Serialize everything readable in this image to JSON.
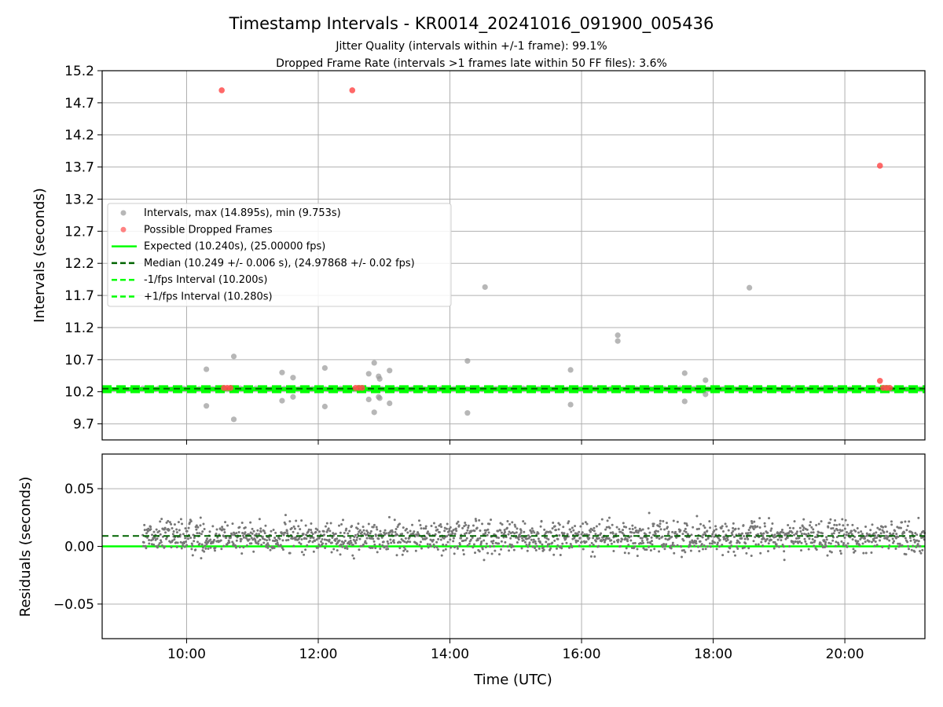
{
  "figure": {
    "title": "Timestamp Intervals - KR0014_20241016_091900_005436",
    "subtitle1": "Jitter Quality (intervals within +/-1 frame): 99.1%",
    "subtitle2": "Dropped Frame Rate (intervals >1 frames late within 50 FF files): 3.6%"
  },
  "colors": {
    "intervals": "#999999",
    "dropped": "#ff4d4d",
    "expected": "#00ff00",
    "median": "#006400",
    "fps_bounds": "#00ff00",
    "residuals": "#777777",
    "grid": "#b0b0b0"
  },
  "chart_data": [
    {
      "type": "scatter",
      "ylabel": "Intervals (seconds)",
      "xlim": [
        "08:43",
        "21:13"
      ],
      "ylim": [
        9.45,
        15.2
      ],
      "yticks": [
        "9.7",
        "10.2",
        "10.7",
        "11.2",
        "11.7",
        "12.2",
        "12.7",
        "13.2",
        "13.7",
        "14.2",
        "14.7",
        "15.2"
      ],
      "xticks": [
        "10:00",
        "12:00",
        "14:00",
        "16:00",
        "18:00",
        "20:00"
      ],
      "grid": true,
      "legend_position": "center-left",
      "legend": [
        {
          "label": "Intervals, max (14.895s), min (9.753s)",
          "kind": "marker",
          "color": "#999999"
        },
        {
          "label": "Possible Dropped Frames",
          "kind": "marker",
          "color": "#ff4d4d"
        },
        {
          "label": "Expected (10.240s), (25.00000 fps)",
          "kind": "line",
          "color": "#00ff00",
          "dash": "solid"
        },
        {
          "label": "Median (10.249 +/- 0.006 s), (24.97868 +/- 0.02 fps)",
          "kind": "line",
          "color": "#006400",
          "dash": "dashed"
        },
        {
          "label": "-1/fps Interval (10.200s)",
          "kind": "line",
          "color": "#00ff00",
          "dash": "dashed"
        },
        {
          "label": "+1/fps Interval (10.280s)",
          "kind": "line",
          "color": "#00ff00",
          "dash": "dashed"
        }
      ],
      "reference_lines": {
        "expected": 10.24,
        "median": 10.249,
        "minus_one_fps": 10.2,
        "plus_one_fps": 10.28
      },
      "band": {
        "x_start": "09:20",
        "x_end": "21:13",
        "y": 10.249
      },
      "interval_outliers": [
        {
          "x": "10:18",
          "y": 10.55
        },
        {
          "x": "10:18",
          "y": 9.98
        },
        {
          "x": "10:43",
          "y": 10.75
        },
        {
          "x": "10:43",
          "y": 9.77
        },
        {
          "x": "11:27",
          "y": 10.5
        },
        {
          "x": "11:27",
          "y": 10.06
        },
        {
          "x": "11:37",
          "y": 10.42
        },
        {
          "x": "11:37",
          "y": 10.12
        },
        {
          "x": "12:06",
          "y": 10.57
        },
        {
          "x": "12:06",
          "y": 9.97
        },
        {
          "x": "12:46",
          "y": 10.48
        },
        {
          "x": "12:46",
          "y": 10.08
        },
        {
          "x": "12:51",
          "y": 10.65
        },
        {
          "x": "12:51",
          "y": 9.88
        },
        {
          "x": "12:55",
          "y": 10.44
        },
        {
          "x": "12:55",
          "y": 10.12
        },
        {
          "x": "12:56",
          "y": 10.4
        },
        {
          "x": "12:56",
          "y": 10.1
        },
        {
          "x": "13:05",
          "y": 10.53
        },
        {
          "x": "13:05",
          "y": 10.02
        },
        {
          "x": "14:16",
          "y": 10.68
        },
        {
          "x": "14:16",
          "y": 9.87
        },
        {
          "x": "14:32",
          "y": 11.83
        },
        {
          "x": "15:50",
          "y": 10.54
        },
        {
          "x": "15:50",
          "y": 10.0
        },
        {
          "x": "16:33",
          "y": 11.08
        },
        {
          "x": "16:33",
          "y": 10.99
        },
        {
          "x": "17:34",
          "y": 10.49
        },
        {
          "x": "17:34",
          "y": 10.05
        },
        {
          "x": "17:53",
          "y": 10.38
        },
        {
          "x": "17:53",
          "y": 10.16
        },
        {
          "x": "18:33",
          "y": 11.82
        }
      ],
      "dropped_frames": [
        {
          "x": "10:32",
          "y": 14.895
        },
        {
          "x": "12:31",
          "y": 14.895
        },
        {
          "x": "20:32",
          "y": 13.72
        },
        {
          "x": "20:32",
          "y": 10.37
        },
        {
          "x": "10:34",
          "y": 10.26
        },
        {
          "x": "10:37",
          "y": 10.26
        },
        {
          "x": "10:40",
          "y": 10.26
        },
        {
          "x": "12:34",
          "y": 10.26
        },
        {
          "x": "12:37",
          "y": 10.26
        },
        {
          "x": "12:40",
          "y": 10.26
        },
        {
          "x": "20:35",
          "y": 10.26
        },
        {
          "x": "20:38",
          "y": 10.26
        },
        {
          "x": "20:41",
          "y": 10.26
        }
      ]
    },
    {
      "type": "scatter",
      "ylabel": "Residuals (seconds)",
      "xlabel": "Time (UTC)",
      "xlim": [
        "08:43",
        "21:13"
      ],
      "ylim": [
        -0.08,
        0.08
      ],
      "yticks": [
        "−0.05",
        "0.00",
        "0.05"
      ],
      "ytick_values": [
        -0.05,
        0.0,
        0.05
      ],
      "xticks": [
        "10:00",
        "12:00",
        "14:00",
        "16:00",
        "18:00",
        "20:00"
      ],
      "grid": true,
      "reference_lines": {
        "expected": 0.0,
        "median": 0.009
      },
      "residual_band": {
        "x_start": "09:20",
        "x_end": "21:13",
        "center": 0.008,
        "spread": 0.007,
        "min": -0.02,
        "max": 0.031
      }
    }
  ]
}
